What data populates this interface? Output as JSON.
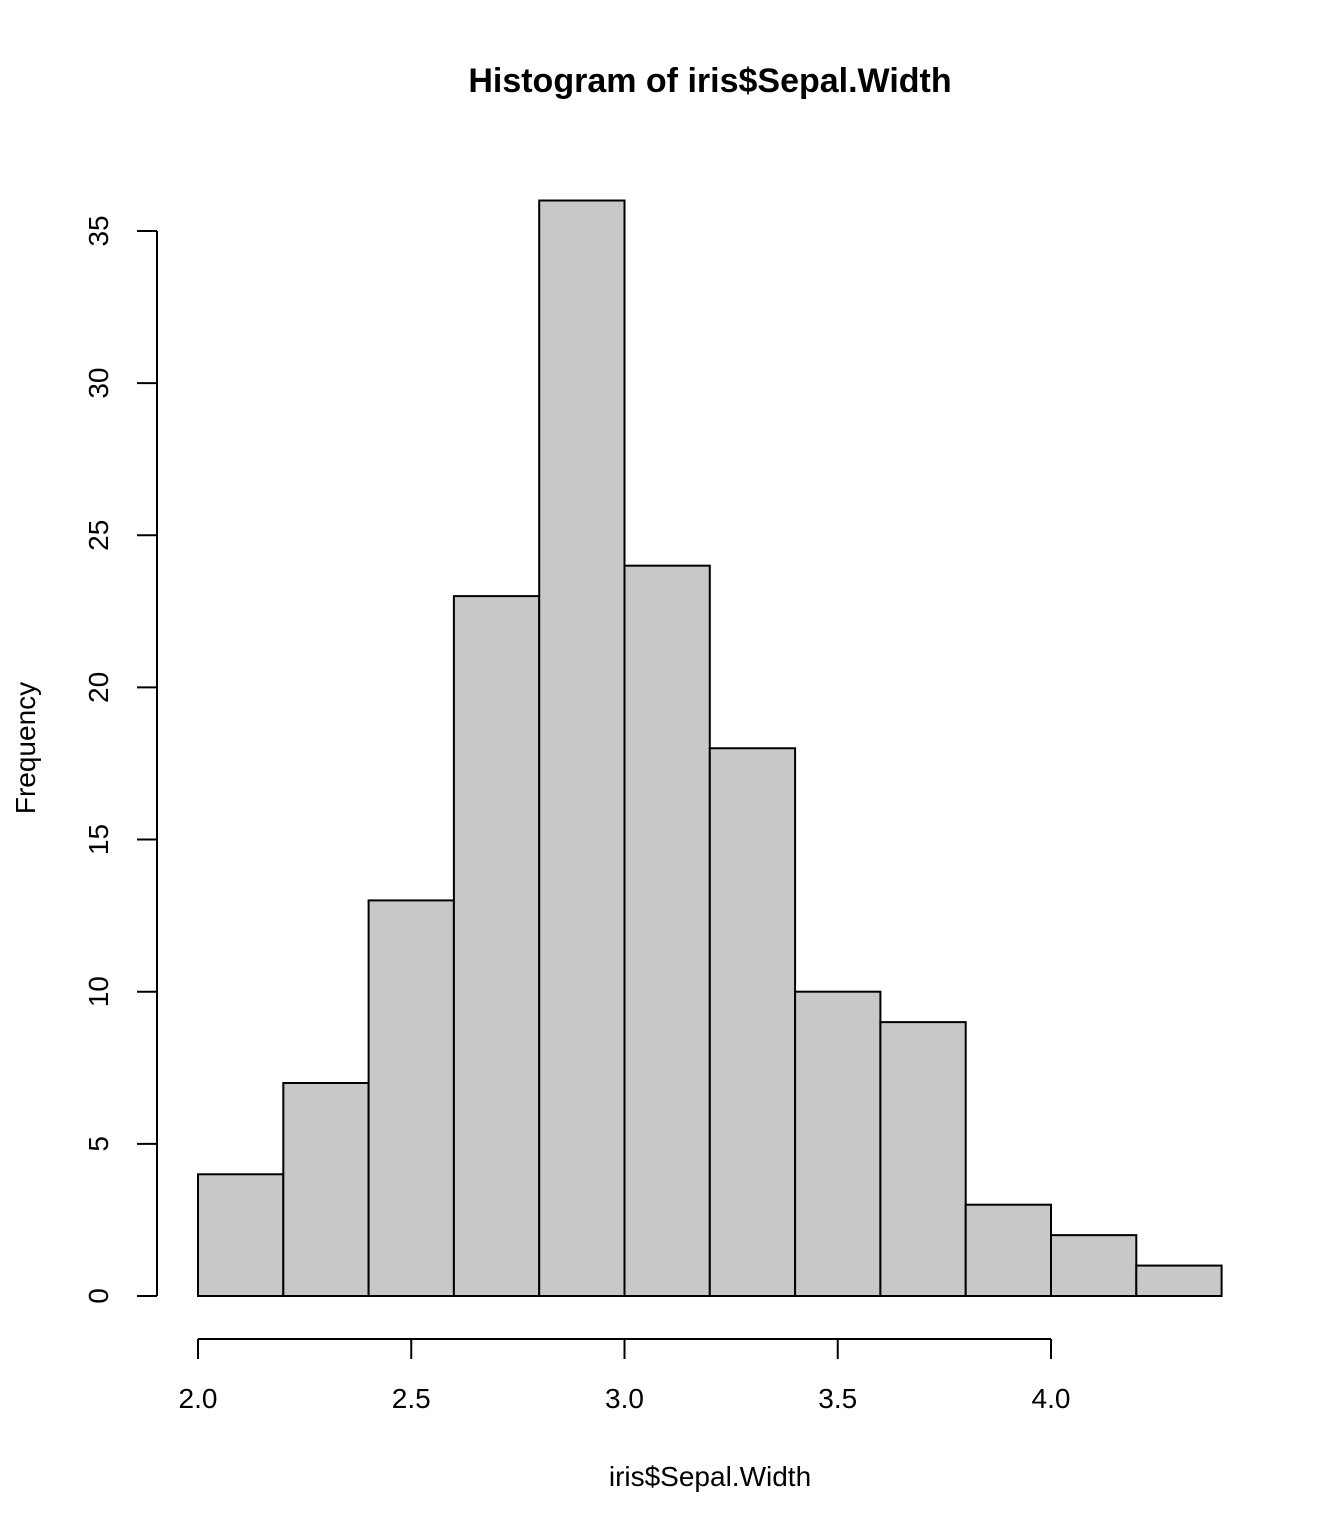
{
  "chart_data": {
    "type": "bar",
    "title": "Histogram of iris$Sepal.Width",
    "xlabel": "iris$Sepal.Width",
    "ylabel": "Frequency",
    "breaks": [
      2.0,
      2.2,
      2.4,
      2.6,
      2.8,
      3.0,
      3.2,
      3.4,
      3.6,
      3.8,
      4.0,
      4.2,
      4.4
    ],
    "values": [
      4,
      7,
      13,
      23,
      36,
      24,
      18,
      10,
      9,
      3,
      2,
      1
    ],
    "xticks": [
      2.0,
      2.5,
      3.0,
      3.5,
      4.0
    ],
    "xtick_labels": [
      "2.0",
      "2.5",
      "3.0",
      "3.5",
      "4.0"
    ],
    "yticks": [
      0,
      5,
      10,
      15,
      20,
      25,
      30,
      35
    ],
    "ytick_labels": [
      "0",
      "5",
      "10",
      "15",
      "20",
      "25",
      "30",
      "35"
    ],
    "grid": false,
    "bar_color": "#c8c8c8",
    "edge_color": "#000000"
  }
}
